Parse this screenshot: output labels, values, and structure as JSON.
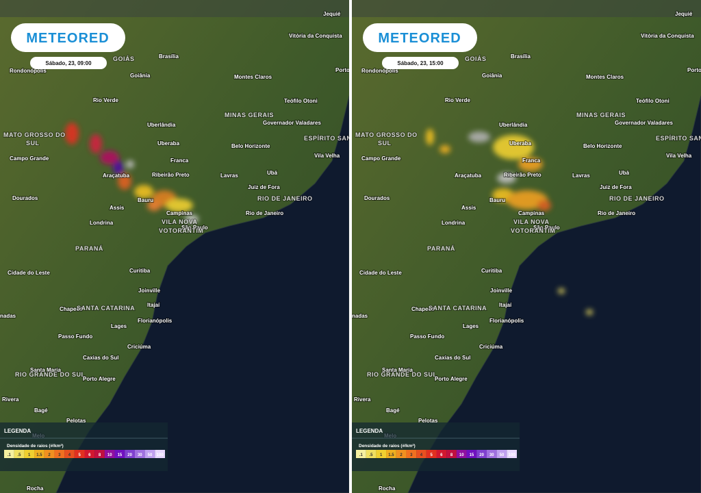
{
  "map": {
    "brand": "METEORED",
    "panels": [
      {
        "timestamp": "Sábado, 23, 09:00"
      },
      {
        "timestamp": "Sábado, 23, 15:00"
      }
    ],
    "cities": [
      "Jequié",
      "Vitória da Conquista",
      "Brasília",
      "GOIÁS",
      "Rondonópolis",
      "Goiânia",
      "Montes Claros",
      "Porto",
      "Teófilo Otoni",
      "Rio Verde",
      "MINAS GERAIS",
      "Governador Valadares",
      "Uberlândia",
      "MATO GROSSO DO",
      "SUL",
      "ESPÍRITO SANTO",
      "Uberaba",
      "Belo Horizonte",
      "Campo Grande",
      "Vila Velha",
      "Franca",
      "Ubá",
      "Araçatuba",
      "Ribeirão Preto",
      "Lavras",
      "Juiz de Fora",
      "Dourados",
      "RIO DE JANEIRO",
      "Bauru",
      "Assis",
      "Rio de Janeiro",
      "Campinas",
      "Londrina",
      "VILA NOVA",
      "São Paulo",
      "VOTORANTIM",
      "PARANÁ",
      "Cidade do Leste",
      "Curitiba",
      "Joinville",
      "Chapecó",
      "SANTA CATARINA",
      "Itajaí",
      "nadas",
      "Florianópolis",
      "Lages",
      "Passo Fundo",
      "Criciúma",
      "Caxias do Sul",
      "Santa Maria",
      "RIO GRANDE DO SUL",
      "Porto Alegre",
      "Rivera",
      "Bagé",
      "Pelotas",
      "Melo",
      "Rocha"
    ],
    "legend": {
      "title": "LEGENDA",
      "subtitle": "Densidade de raios (#/km²)",
      "scale": [
        ".1",
        ".5",
        "1",
        "1.5",
        "2",
        "3",
        "4",
        "5",
        "6",
        "8",
        "10",
        "15",
        "20",
        "30",
        "50",
        "100"
      ]
    }
  }
}
